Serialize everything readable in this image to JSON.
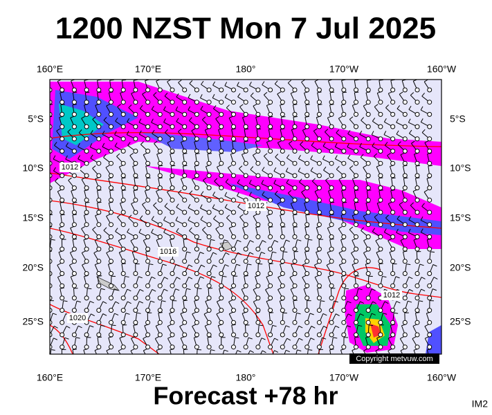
{
  "header": {
    "title": "1200 NZST Mon 7 Jul 2025"
  },
  "map": {
    "lon_labels": [
      "160°E",
      "170°E",
      "180°",
      "170°W",
      "160°W"
    ],
    "lat_labels": [
      "5°S",
      "10°S",
      "15°S",
      "20°S",
      "25°S"
    ],
    "contour_labels": [
      "1012",
      "1012",
      "1016",
      "1020",
      "1012"
    ],
    "copyright": "Copyright metvuw.com"
  },
  "footer": {
    "forecast": "Forecast +78 hr",
    "id": "IM2"
  }
}
